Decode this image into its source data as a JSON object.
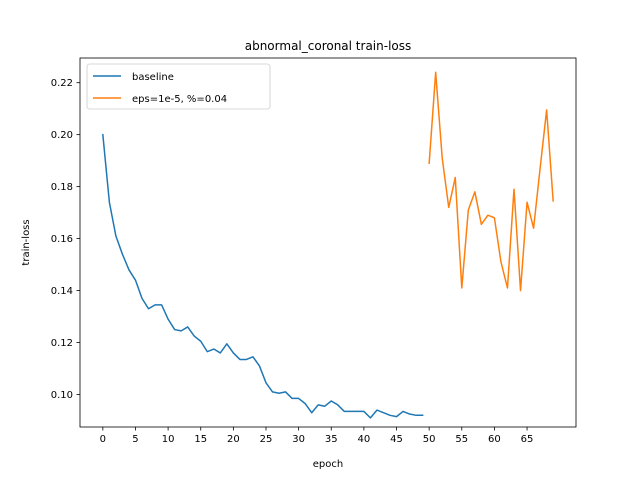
{
  "chart_data": {
    "type": "line",
    "title": "abnormal_coronal train-loss",
    "xlabel": "epoch",
    "ylabel": "train-loss",
    "xlim": [
      -3.5,
      72.5
    ],
    "ylim": [
      0.0875,
      0.2295
    ],
    "xticks": [
      0,
      5,
      10,
      15,
      20,
      25,
      30,
      35,
      40,
      45,
      50,
      55,
      60,
      65
    ],
    "yticks": [
      0.1,
      0.12,
      0.14,
      0.16,
      0.18,
      0.2,
      0.22
    ],
    "ytick_labels": [
      "0.10",
      "0.12",
      "0.14",
      "0.16",
      "0.18",
      "0.20",
      "0.22"
    ],
    "grid": false,
    "legend_position": "upper left",
    "series": [
      {
        "name": "baseline",
        "color": "#1f77b4",
        "x": [
          0,
          1,
          2,
          3,
          4,
          5,
          6,
          7,
          8,
          9,
          10,
          11,
          12,
          13,
          14,
          15,
          16,
          17,
          18,
          19,
          20,
          21,
          22,
          23,
          24,
          25,
          26,
          27,
          28,
          29,
          30,
          31,
          32,
          33,
          34,
          35,
          36,
          37,
          38,
          39,
          40,
          41,
          42,
          43,
          44,
          45,
          46,
          47,
          48,
          49
        ],
        "y": [
          0.2,
          0.174,
          0.161,
          0.154,
          0.148,
          0.144,
          0.137,
          0.133,
          0.1345,
          0.1345,
          0.129,
          0.125,
          0.1245,
          0.126,
          0.1225,
          0.1205,
          0.1165,
          0.1175,
          0.116,
          0.1195,
          0.116,
          0.1135,
          0.1135,
          0.1145,
          0.111,
          0.1045,
          0.101,
          0.1005,
          0.101,
          0.0985,
          0.0985,
          0.0965,
          0.093,
          0.096,
          0.0955,
          0.0975,
          0.096,
          0.0935,
          0.0935,
          0.0935,
          0.0935,
          0.091,
          0.094,
          0.093,
          0.092,
          0.0915,
          0.0935,
          0.0925,
          0.092,
          0.092
        ]
      },
      {
        "name": "eps=1e-5, %=0.04",
        "color": "#ff7f0e",
        "x": [
          50,
          51,
          52,
          53,
          54,
          55,
          56,
          57,
          58,
          59,
          60,
          61,
          62,
          63,
          64,
          65,
          66,
          67,
          68,
          69
        ],
        "y": [
          0.189,
          0.224,
          0.191,
          0.172,
          0.1835,
          0.141,
          0.171,
          0.178,
          0.1655,
          0.169,
          0.168,
          0.151,
          0.141,
          0.179,
          0.14,
          0.174,
          0.164,
          0.187,
          0.2095,
          0.1745
        ]
      }
    ]
  }
}
